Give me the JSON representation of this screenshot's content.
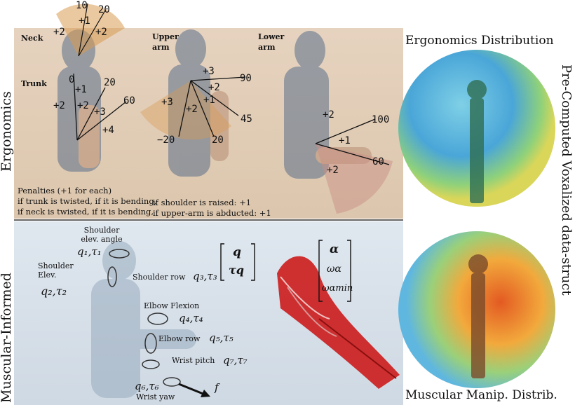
{
  "left_labels": {
    "top": "Ergonomics",
    "bottom": "Muscular-Informed"
  },
  "right_label": "Pre-Computed Voxalized data-struct",
  "top_right_title": "Ergonomics Distribution",
  "bottom_right_title": "Muscular Manip. Distrib.",
  "segments": {
    "neck": "Neck",
    "trunk": "Trunk",
    "upper_arm": "Upper arm",
    "lower_arm": "Lower arm"
  },
  "neck_angles": {
    "a10": "10",
    "a20": "20",
    "p1": "+1",
    "p2a": "+2",
    "p2b": "+2"
  },
  "trunk_angles": {
    "a0": "0",
    "a20": "20",
    "a60": "60",
    "p1": "+1",
    "p2a": "+2",
    "p2b": "+2",
    "p3": "+3",
    "p4": "+4"
  },
  "upper_angles": {
    "a90": "90",
    "a45": "45",
    "am20": "−20",
    "a20": "20",
    "p3a": "+3",
    "p2a": "+2",
    "p1": "+1",
    "p3b": "+3",
    "p2b": "+2"
  },
  "lower_angles": {
    "a100": "100",
    "a60": "60",
    "p2a": "+2",
    "p1": "+1",
    "p2b": "+2"
  },
  "penalties": {
    "line1": "Penalties (+1 for each)",
    "line2": "if trunk is twisted, if it is bending,",
    "line3": "if neck is twisted, if it is bending,",
    "line4": "if shoulder is raised: +1",
    "line5": "if upper-arm is abducted: +1"
  },
  "joints": {
    "shoulder_elev_angle": "Shoulder elev. angle",
    "q1": "q₁,τ₁",
    "shoulder_elev": "Shoulder Elev.",
    "q2": "q₂,τ₂",
    "shoulder_row": "Shoulder row",
    "q3": "q₃,τ₃",
    "elbow_flexion": "Elbow Flexion",
    "q4": "q₄,τ₄",
    "elbow_row": "Elbow row",
    "q5": "q₅,τ₅",
    "wrist_pitch": "Wrist pitch",
    "q7": "q₇,τ₇",
    "q6": "q₆,τ₆",
    "wrist_yaw": "Wrist yaw",
    "force": "f"
  },
  "vectors": {
    "q_top": "q",
    "q_bottom": "τq",
    "alpha": "α",
    "omega": "ωα",
    "omega_min": "ωαmin"
  }
}
